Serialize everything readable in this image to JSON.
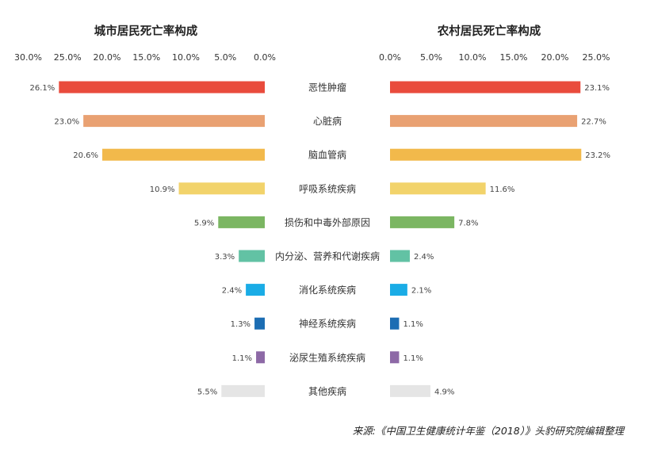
{
  "chart_data": [
    {
      "type": "bar",
      "orientation": "horizontal",
      "direction": "right-to-left",
      "title": "城市居民死亡率构成",
      "xlim": [
        0,
        30
      ],
      "ticks": [
        "30.0%",
        "25.0%",
        "20.0%",
        "15.0%",
        "10.0%",
        "5.0%",
        "0.0%"
      ],
      "tick_values": [
        30,
        25,
        20,
        15,
        10,
        5,
        0
      ],
      "value_labels": [
        "26.1%",
        "23.0%",
        "20.6%",
        "10.9%",
        "5.9%",
        "3.3%",
        "2.4%",
        "1.3%",
        "1.1%",
        "5.5%"
      ],
      "values": [
        26.1,
        23.0,
        20.6,
        10.9,
        5.9,
        3.3,
        2.4,
        1.3,
        1.1,
        5.5
      ],
      "grid": false,
      "legend": "none"
    },
    {
      "type": "bar",
      "orientation": "horizontal",
      "direction": "left-to-right",
      "title": "农村居民死亡率构成",
      "xlim": [
        0,
        25
      ],
      "ticks": [
        "0.0%",
        "5.0%",
        "10.0%",
        "15.0%",
        "20.0%",
        "25.0%"
      ],
      "tick_values": [
        0,
        5,
        10,
        15,
        20,
        25
      ],
      "value_labels": [
        "23.1%",
        "22.7%",
        "23.2%",
        "11.6%",
        "7.8%",
        "2.4%",
        "2.1%",
        "1.1%",
        "1.1%",
        "4.9%"
      ],
      "values": [
        23.1,
        22.7,
        23.2,
        11.6,
        7.8,
        2.4,
        2.1,
        1.1,
        1.1,
        4.9
      ],
      "grid": false,
      "legend": "none"
    }
  ],
  "categories": [
    "恶性肿瘤",
    "心脏病",
    "脑血管病",
    "呼吸系统疾病",
    "损伤和中毒外部原因",
    "内分泌、营养和代谢疾病",
    "消化系统疾病",
    "神经系统疾病",
    "泌尿生殖系统疾病",
    "其他疾病"
  ],
  "colors": [
    "#e94b3c",
    "#e9a172",
    "#f2b94b",
    "#f2d36b",
    "#7bb662",
    "#62c2a4",
    "#1aace6",
    "#1c6db3",
    "#8d69a6",
    "#e5e5e5"
  ],
  "source": "来源:《中国卫生健康统计年鉴（2018）》头豹研究院编辑整理"
}
